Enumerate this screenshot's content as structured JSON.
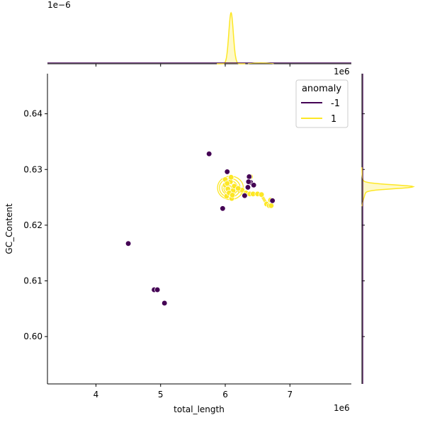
{
  "chart_data": {
    "type": "scatter",
    "xlabel": "total_length",
    "ylabel": "GC_Content",
    "x_offset_label": "1e6",
    "top_offset_label": "1e6",
    "top_density_offset_label": "1e−6",
    "xlim": [
      3.25,
      7.95
    ],
    "ylim": [
      0.5915,
      0.6472
    ],
    "xticks": [
      "4",
      "5",
      "6",
      "7"
    ],
    "yticks": [
      "0.60",
      "0.61",
      "0.62",
      "0.63",
      "0.64"
    ],
    "legend": {
      "title": "anomaly",
      "placement": "top-right",
      "entries": [
        "-1",
        "1"
      ]
    },
    "colors": {
      "-1": "#440154",
      "1": "#fde725"
    },
    "series": [
      {
        "name": "-1",
        "points": [
          [
            5.75,
            0.6328
          ],
          [
            6.03,
            0.6296
          ],
          [
            6.37,
            0.6287
          ],
          [
            6.39,
            0.6277
          ],
          [
            6.44,
            0.6272
          ],
          [
            6.36,
            0.6278
          ],
          [
            6.35,
            0.6268
          ],
          [
            6.3,
            0.6253
          ],
          [
            6.73,
            0.6244
          ],
          [
            5.96,
            0.623
          ],
          [
            4.5,
            0.6167
          ],
          [
            4.9,
            0.6084
          ],
          [
            4.95,
            0.6084
          ],
          [
            5.06,
            0.606
          ]
        ]
      },
      {
        "name": "1",
        "points": [
          [
            6.0,
            0.6272
          ],
          [
            6.04,
            0.6265
          ],
          [
            6.08,
            0.6278
          ],
          [
            6.12,
            0.6262
          ],
          [
            6.02,
            0.6252
          ],
          [
            6.1,
            0.6248
          ],
          [
            6.06,
            0.6258
          ],
          [
            6.14,
            0.627
          ],
          [
            6.0,
            0.6282
          ],
          [
            6.09,
            0.6286
          ],
          [
            6.03,
            0.6275
          ],
          [
            6.11,
            0.6254
          ],
          [
            6.26,
            0.6263
          ],
          [
            6.32,
            0.6258
          ],
          [
            6.38,
            0.6256
          ],
          [
            6.43,
            0.6256
          ],
          [
            6.5,
            0.6256
          ],
          [
            6.56,
            0.6255
          ],
          [
            6.64,
            0.6238
          ],
          [
            6.68,
            0.6235
          ],
          [
            6.71,
            0.6235
          ],
          [
            6.7,
            0.6245
          ],
          [
            6.39,
            0.6287
          ],
          [
            6.2,
            0.6266
          ]
        ]
      }
    ],
    "kde_contours": [
      {
        "cx": 6.08,
        "cy": 0.6267,
        "rx": 0.2,
        "ry": 0.0021
      },
      {
        "cx": 6.07,
        "cy": 0.6267,
        "rx": 0.16,
        "ry": 0.0017
      },
      {
        "cx": 6.07,
        "cy": 0.6267,
        "rx": 0.12,
        "ry": 0.0013
      },
      {
        "cx": 6.06,
        "cy": 0.6266,
        "rx": 0.08,
        "ry": 0.0009
      },
      {
        "cx": 6.06,
        "cy": 0.6266,
        "rx": 0.04,
        "ry": 0.0005
      }
    ],
    "kde_trail": [
      [
        6.2,
        0.6262
      ],
      [
        6.32,
        0.6257
      ],
      [
        6.44,
        0.6256
      ],
      [
        6.56,
        0.6254
      ],
      [
        6.64,
        0.6238
      ],
      [
        6.7,
        0.6234
      ]
    ]
  }
}
